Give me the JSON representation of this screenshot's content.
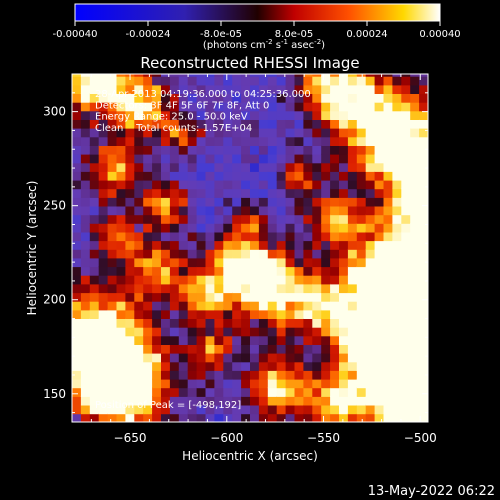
{
  "colorbar": {
    "tick_labels": [
      "-0.00040",
      "-0.00024",
      "-8.0e-05",
      "8.0e-05",
      "0.00024",
      "0.00040"
    ],
    "tick_values": [
      -0.0004,
      -0.00024,
      -8e-05,
      8e-05,
      0.00024,
      0.0004
    ],
    "range": [
      -0.0004,
      0.0004
    ],
    "unit_main": "(photons cm",
    "unit_sup1": "-2",
    "unit_mid1": " s",
    "unit_sup2": "-1",
    "unit_mid2": " asec",
    "unit_sup3": "-2",
    "unit_end": ")"
  },
  "chart_data": {
    "type": "heatmap",
    "title": "Reconstructed RHESSI Image",
    "xlabel": "Heliocentric X (arcsec)",
    "ylabel": "Heliocentric Y (arcsec)",
    "xlim": [
      -680,
      -496
    ],
    "ylim": [
      135,
      320
    ],
    "xticks": [
      -650,
      -600,
      -550,
      -500
    ],
    "yticks": [
      150,
      200,
      250,
      300
    ],
    "xtick_labels": [
      "−650",
      "−600",
      "−550",
      "−500"
    ],
    "ytick_labels": [
      "150",
      "200",
      "250",
      "300"
    ],
    "annotations": [
      "28-Apr-2013 04:19:36.000 to 04:25:36.000",
      "Detectors: 3F 4F 5F 6F 7F 8F, Att 0",
      "Energy Range: 25.0 - 50.0 keV",
      "Clean    Total counts: 1.57E+04"
    ],
    "peak_label": "Position of Peak = [-498,192]",
    "peak_position": [
      -498,
      192
    ],
    "colormap": "rainbow-hot (blue-purple-red-orange-yellow-white)",
    "colorscale_range": [
      -0.0004,
      0.0004
    ]
  },
  "footer": {
    "date": "13-May-2022 06:22"
  }
}
